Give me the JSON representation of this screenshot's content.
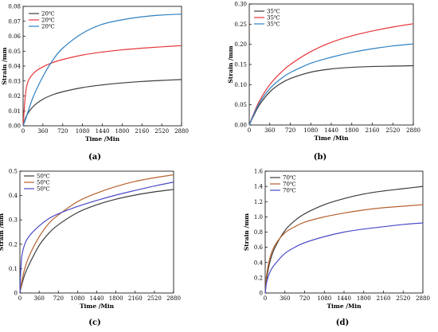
{
  "chart_data": [
    {
      "type": "line",
      "panel": "(a)",
      "xlabel": "Time /Min",
      "ylabel": "Strain /mm",
      "xlim": [
        0,
        2880
      ],
      "ylim": [
        0,
        0.08
      ],
      "xticks": [
        0,
        360,
        720,
        1080,
        1440,
        1800,
        2160,
        2520,
        2880
      ],
      "yticks": [
        0,
        0.01,
        0.02,
        0.03,
        0.04,
        0.05,
        0.06,
        0.07,
        0.08
      ],
      "ytick_labels": [
        "0.00",
        "0.01",
        "0.02",
        "0.03",
        "0.04",
        "0.05",
        "0.06",
        "0.07",
        "0.08"
      ],
      "legend_position": "top-left",
      "grid": false,
      "x": [
        0,
        60,
        180,
        360,
        540,
        720,
        1080,
        1440,
        1800,
        2160,
        2520,
        2880
      ],
      "series": [
        {
          "name": "20℃",
          "color": "#3c3c3c",
          "values": [
            0,
            0.0065,
            0.0128,
            0.0178,
            0.0208,
            0.0228,
            0.0256,
            0.0274,
            0.0287,
            0.0297,
            0.0304,
            0.031
          ]
        },
        {
          "name": "20℃",
          "color": "#e8363a",
          "values": [
            0,
            0.0255,
            0.0348,
            0.0395,
            0.0424,
            0.0444,
            0.0474,
            0.0494,
            0.0509,
            0.052,
            0.0529,
            0.0537
          ]
        },
        {
          "name": "20℃",
          "color": "#2f80c0",
          "values": [
            0,
            0.006,
            0.019,
            0.033,
            0.044,
            0.052,
            0.062,
            0.068,
            0.071,
            0.073,
            0.0742,
            0.0748
          ]
        }
      ]
    },
    {
      "type": "line",
      "panel": "(b)",
      "xlabel": "Time /Min",
      "ylabel": "Strain /mm",
      "xlim": [
        0,
        2880
      ],
      "ylim": [
        0,
        0.3
      ],
      "xticks": [
        0,
        360,
        720,
        1080,
        1440,
        1800,
        2160,
        2520,
        2880
      ],
      "yticks": [
        0,
        0.05,
        0.1,
        0.15,
        0.2,
        0.25,
        0.3
      ],
      "ytick_labels": [
        "0.00",
        "0.05",
        "0.10",
        "0.15",
        "0.20",
        "0.25",
        "0.30"
      ],
      "legend_position": "top-left",
      "grid": false,
      "x": [
        0,
        60,
        180,
        360,
        540,
        720,
        1080,
        1440,
        1800,
        2160,
        2520,
        2880
      ],
      "series": [
        {
          "name": "35℃",
          "color": "#3c3c3c",
          "values": [
            0,
            0.018,
            0.05,
            0.082,
            0.102,
            0.115,
            0.131,
            0.139,
            0.143,
            0.145,
            0.146,
            0.147
          ]
        },
        {
          "name": "35℃",
          "color": "#e8363a",
          "values": [
            0,
            0.022,
            0.06,
            0.1,
            0.128,
            0.15,
            0.182,
            0.205,
            0.221,
            0.233,
            0.243,
            0.251
          ]
        },
        {
          "name": "35℃",
          "color": "#2f80c0",
          "values": [
            0,
            0.02,
            0.055,
            0.09,
            0.113,
            0.13,
            0.153,
            0.168,
            0.18,
            0.189,
            0.196,
            0.201
          ]
        }
      ]
    },
    {
      "type": "line",
      "panel": "(c)",
      "xlabel": "Time /Min",
      "ylabel": "Strain /mm",
      "xlim": [
        0,
        2880
      ],
      "ylim": [
        0,
        0.5
      ],
      "xticks": [
        0,
        360,
        720,
        1080,
        1440,
        1800,
        2160,
        2520,
        2880
      ],
      "yticks": [
        0,
        0.1,
        0.2,
        0.3,
        0.4,
        0.5
      ],
      "ytick_labels": [
        "0",
        "0.1",
        "0.2",
        "0.3",
        "0.4",
        "0.5"
      ],
      "legend_position": "top-left",
      "grid": false,
      "x": [
        0,
        30,
        90,
        180,
        360,
        540,
        720,
        1080,
        1440,
        1800,
        2160,
        2520,
        2880
      ],
      "series": [
        {
          "name": "50℃",
          "color": "#3c3c3c",
          "values": [
            0,
            0.03,
            0.075,
            0.12,
            0.195,
            0.245,
            0.28,
            0.33,
            0.362,
            0.385,
            0.402,
            0.415,
            0.425
          ]
        },
        {
          "name": "50℃",
          "color": "#b5622e",
          "values": [
            0,
            0.04,
            0.1,
            0.155,
            0.23,
            0.285,
            0.32,
            0.375,
            0.41,
            0.437,
            0.458,
            0.473,
            0.485
          ]
        },
        {
          "name": "50℃",
          "color": "#4a4ac8",
          "values": [
            0,
            0.14,
            0.2,
            0.235,
            0.275,
            0.305,
            0.325,
            0.355,
            0.38,
            0.402,
            0.421,
            0.439,
            0.455
          ]
        }
      ]
    },
    {
      "type": "line",
      "panel": "(d)",
      "xlabel": "Time /Min",
      "ylabel": "Strain /mm",
      "xlim": [
        0,
        2880
      ],
      "ylim": [
        0,
        1.6
      ],
      "xticks": [
        0,
        360,
        720,
        1080,
        1440,
        1800,
        2160,
        2520,
        2880
      ],
      "yticks": [
        0,
        0.2,
        0.4,
        0.6,
        0.8,
        1.0,
        1.2,
        1.4,
        1.6
      ],
      "ytick_labels": [
        "0",
        "0.2",
        "0.4",
        "0.6",
        "0.8",
        "1.0",
        "1.2",
        "1.4",
        "1.6"
      ],
      "legend_position": "top-left",
      "grid": false,
      "x": [
        0,
        30,
        90,
        180,
        360,
        540,
        720,
        1080,
        1440,
        1800,
        2160,
        2520,
        2880
      ],
      "series": [
        {
          "name": "70℃",
          "color": "#3c3c3c",
          "values": [
            0,
            0.2,
            0.42,
            0.6,
            0.82,
            0.95,
            1.04,
            1.16,
            1.24,
            1.3,
            1.34,
            1.37,
            1.4
          ]
        },
        {
          "name": "70℃",
          "color": "#b5622e",
          "values": [
            0,
            0.25,
            0.47,
            0.63,
            0.79,
            0.87,
            0.93,
            1.0,
            1.05,
            1.09,
            1.12,
            1.14,
            1.16
          ]
        },
        {
          "name": "70℃",
          "color": "#4a4ac8",
          "values": [
            0,
            0.15,
            0.28,
            0.38,
            0.52,
            0.6,
            0.66,
            0.74,
            0.8,
            0.84,
            0.87,
            0.9,
            0.92
          ]
        }
      ]
    }
  ],
  "panels_layout_keys": [
    "a",
    "b",
    "c",
    "d"
  ]
}
